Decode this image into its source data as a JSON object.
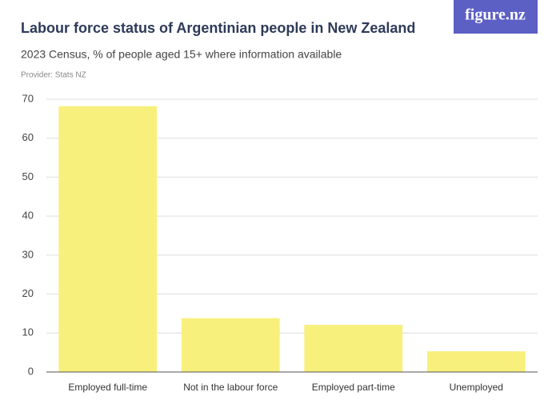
{
  "logo": "figure.nz",
  "chart_data": {
    "type": "bar",
    "title": "Labour force status of Argentinian people in New Zealand",
    "subtitle": "2023 Census, % of people aged 15+ where information available",
    "provider": "Provider: Stats NZ",
    "categories": [
      "Employed full-time",
      "Not in the labour force",
      "Employed part-time",
      "Unemployed"
    ],
    "values": [
      68.2,
      13.8,
      12.1,
      5.3
    ],
    "color": "#f8f07c",
    "ylim": [
      0,
      70
    ],
    "yticks": [
      0,
      10,
      20,
      30,
      40,
      50,
      60,
      70
    ],
    "grid": true
  }
}
